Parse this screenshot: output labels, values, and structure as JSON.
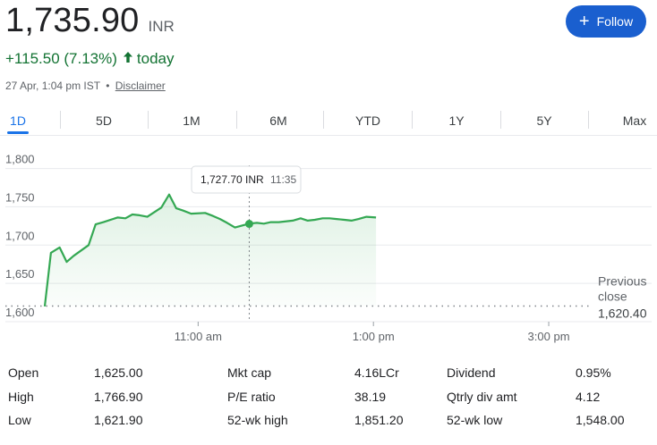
{
  "quote": {
    "price": "1,735.90",
    "currency": "INR",
    "change": "+115.50 (7.13%)",
    "change_arrow_icon": "arrow-up-icon",
    "period": "today",
    "timestamp": "27 Apr, 1:04 pm IST",
    "separator": "•",
    "disclaimer": "Disclaimer",
    "positive_color": "#137333"
  },
  "follow_button": {
    "label": "Follow",
    "icon": "plus-icon",
    "color": "#1a5fcf"
  },
  "tabs": [
    "1D",
    "5D",
    "1M",
    "6M",
    "YTD",
    "1Y",
    "5Y",
    "Max"
  ],
  "active_tab": "1D",
  "tooltip": {
    "value": "1,727.70 INR",
    "time": "11:35"
  },
  "previous_close": {
    "label_line1": "Previous",
    "label_line2": "close",
    "value": "1,620.40"
  },
  "chart_data": {
    "type": "area",
    "y_tick_labels": [
      "1,800",
      "1,750",
      "1,700",
      "1,650",
      "1,600"
    ],
    "y_ticks": [
      1800,
      1750,
      1700,
      1650,
      1600
    ],
    "x_tick_labels": [
      "11:00 am",
      "1:00 pm",
      "3:00 pm"
    ],
    "x_ticks_hours": [
      11,
      13,
      15
    ],
    "x_range_hours": [
      9.25,
      15.5
    ],
    "ylim": [
      1600,
      1810
    ],
    "previous_close": 1620.4,
    "hover_point": {
      "x": 11.583,
      "y": 1727.7
    },
    "line_color": "#34a853",
    "grid": true,
    "series": [
      {
        "x": [
          9.25,
          9.32,
          9.42,
          9.5,
          9.58,
          9.75,
          9.83,
          9.92,
          10.08,
          10.17,
          10.25,
          10.33,
          10.42,
          10.58,
          10.67,
          10.75,
          10.83,
          10.92,
          11.08,
          11.17,
          11.25,
          11.33,
          11.42,
          11.58,
          11.67,
          11.75,
          11.83,
          11.92,
          12.08,
          12.17,
          12.25,
          12.33,
          12.42,
          12.5,
          12.58,
          12.67,
          12.75,
          12.83,
          12.92,
          13.03
        ],
        "y": [
          1620,
          1690,
          1697,
          1678,
          1686,
          1700,
          1727,
          1730,
          1736,
          1735,
          1740,
          1739,
          1737,
          1749,
          1766,
          1748,
          1745,
          1741,
          1742,
          1738,
          1734,
          1729,
          1723,
          1728,
          1729,
          1728,
          1730,
          1730,
          1732,
          1735,
          1732,
          1733,
          1735,
          1735,
          1734,
          1733,
          1732,
          1734,
          1737,
          1736
        ]
      }
    ]
  },
  "stats": {
    "col1": [
      {
        "label": "Open",
        "value": "1,625.00"
      },
      {
        "label": "High",
        "value": "1,766.90"
      },
      {
        "label": "Low",
        "value": "1,621.90"
      }
    ],
    "col2": [
      {
        "label": "Mkt cap",
        "value": "4.16LCr"
      },
      {
        "label": "P/E ratio",
        "value": "38.19"
      },
      {
        "label": "52-wk high",
        "value": "1,851.20"
      }
    ],
    "col3": [
      {
        "label": "Dividend",
        "value": "0.95%"
      },
      {
        "label": "Qtrly div amt",
        "value": "4.12"
      },
      {
        "label": "52-wk low",
        "value": "1,548.00"
      }
    ]
  }
}
